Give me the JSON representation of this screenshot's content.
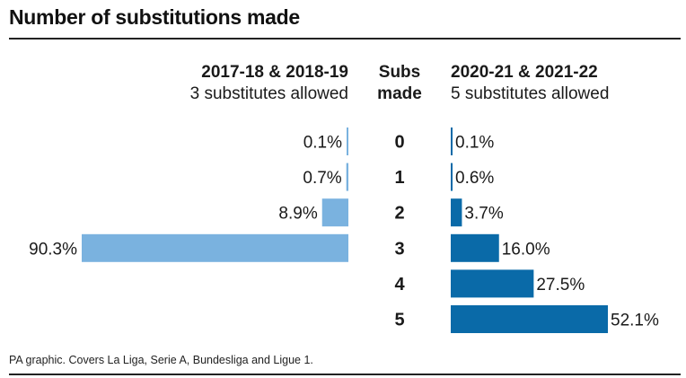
{
  "title": "Number of substitutions made",
  "source": "PA graphic.  Covers La Liga, Serie A, Bundesliga and Ligue 1.",
  "colors": {
    "left_bar": "#7ab2df",
    "right_bar": "#0a6aa8",
    "text": "#1a1a1a"
  },
  "chart_data": {
    "type": "bar",
    "orientation": "horizontal-butterfly",
    "title": "Number of substitutions made",
    "category_axis_title": [
      "Subs",
      "made"
    ],
    "categories": [
      "0",
      "1",
      "2",
      "3",
      "4",
      "5"
    ],
    "value_unit": "%",
    "series": [
      {
        "name": "2017-18 & 2018-19",
        "subtitle": "3 substitutes allowed",
        "side": "left",
        "values": [
          0.1,
          0.7,
          8.9,
          90.3,
          null,
          null
        ],
        "labels": [
          "0.1%",
          "0.7%",
          "8.9%",
          "90.3%",
          "",
          ""
        ]
      },
      {
        "name": "2020-21 & 2021-22",
        "subtitle": "5 substitutes allowed",
        "side": "right",
        "values": [
          0.1,
          0.6,
          3.7,
          16.0,
          27.5,
          52.1
        ],
        "labels": [
          "0.1%",
          "0.6%",
          "3.7%",
          "16.0%",
          "27.5%",
          "52.1%"
        ]
      }
    ]
  }
}
